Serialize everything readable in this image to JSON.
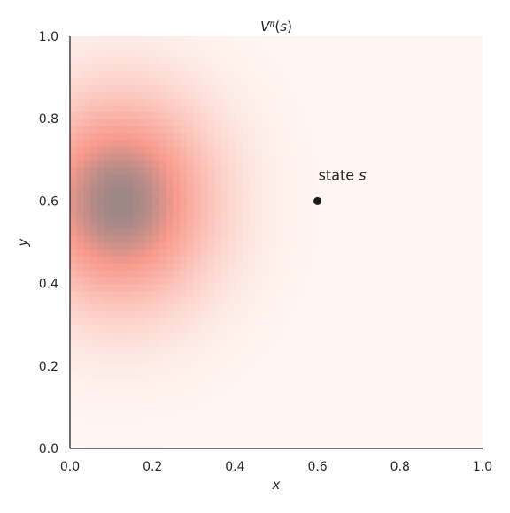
{
  "chart_data": {
    "type": "heatmap",
    "title": "V^π(s)",
    "title_parts": {
      "base": "V",
      "sup": "π",
      "rest": "(s)"
    },
    "xlabel": "x",
    "ylabel": "y",
    "xlim": [
      0.0,
      1.0
    ],
    "ylim": [
      0.0,
      1.0
    ],
    "x_ticks": [
      "0.0",
      "0.2",
      "0.4",
      "0.6",
      "0.8",
      "1.0"
    ],
    "y_ticks": [
      "0.0",
      "0.2",
      "0.4",
      "0.6",
      "0.8",
      "1.0"
    ],
    "grid": false,
    "value_peak": {
      "x": 0.12,
      "y": 0.6
    },
    "value_spread": {
      "x": 0.16,
      "y": 0.18
    },
    "colormap": {
      "low": "#fff6f2",
      "mid": "#f89a8c",
      "high": "#9c8686"
    },
    "point": {
      "x": 0.6,
      "y": 0.6,
      "color": "#1a1a1a"
    },
    "annotation": {
      "text": "state ",
      "italic": "s",
      "x": 0.6,
      "y": 0.6
    }
  }
}
